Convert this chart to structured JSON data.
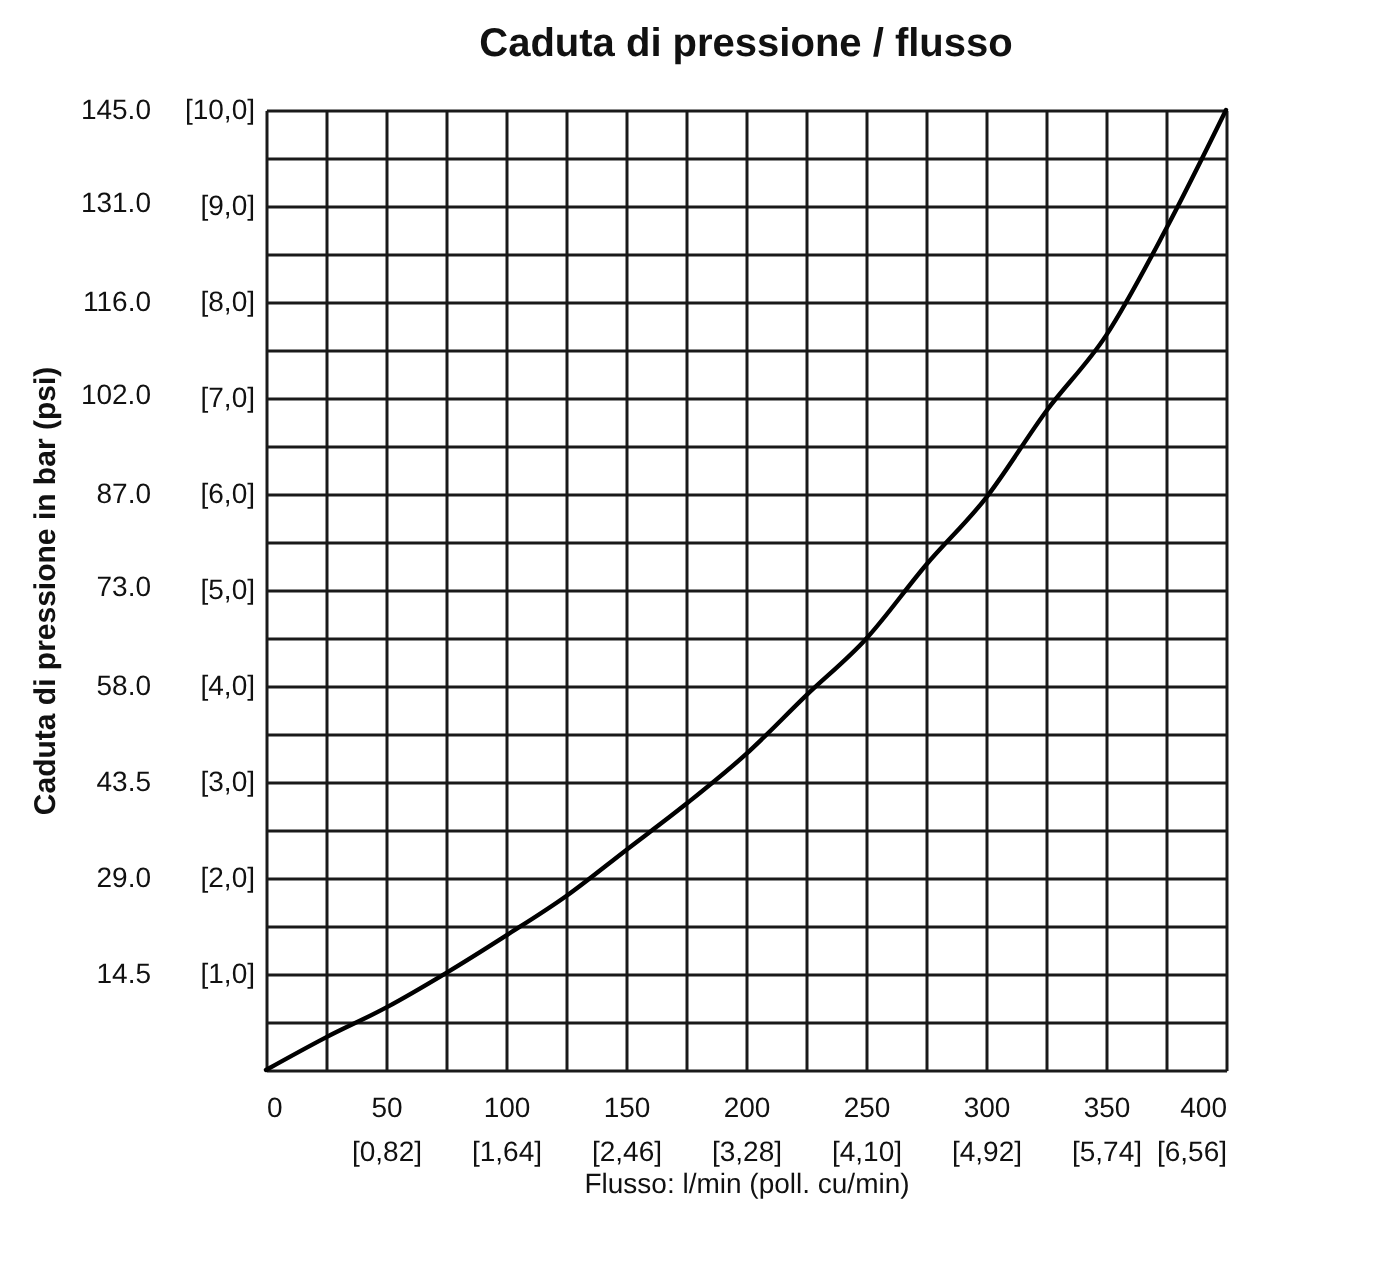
{
  "chart_data": {
    "type": "line",
    "title": "Caduta di pressione / flusso",
    "xlabel": "Flusso: l/min (poll. cu/min)",
    "y2label": "Caduta di pressione in bar (psi)",
    "x": [
      0,
      25,
      50,
      75,
      100,
      125,
      150,
      175,
      200,
      225,
      250,
      275,
      300,
      325,
      350,
      375,
      400
    ],
    "series": [
      {
        "color": "#000000",
        "values": [
          0,
          0.34,
          0.65,
          1.01,
          1.4,
          1.81,
          2.29,
          2.77,
          3.29,
          3.9,
          4.49,
          5.26,
          5.96,
          6.86,
          7.65,
          8.76,
          10
        ]
      }
    ],
    "xlim": [
      0,
      400
    ],
    "ylim": [
      0,
      10
    ],
    "xticks": [
      0,
      {
        "value": 25,
        "label": null
      },
      50,
      {
        "value": 75,
        "label": null
      },
      100,
      {
        "value": 125,
        "label": null
      },
      150,
      {
        "value": 175,
        "label": null
      },
      200,
      {
        "value": 225,
        "label": null
      },
      250,
      {
        "value": 275,
        "label": null
      },
      300,
      {
        "value": 325,
        "label": null
      },
      350,
      {
        "value": 375,
        "label": null
      },
      400
    ],
    "x2lim": [
      0,
      6.56
    ],
    "x2ticks": [
      {
        "value": 0.82,
        "label": "[0,82]"
      },
      {
        "value": 1.64,
        "label": "[1,64]"
      },
      {
        "value": 2.46,
        "label": "[2,46]"
      },
      {
        "value": 3.28,
        "label": "[3,28]"
      },
      {
        "value": 4.1,
        "label": "[4,10]"
      },
      {
        "value": 4.92,
        "label": "[4,92]"
      },
      {
        "value": 5.74,
        "label": "[5,74]"
      },
      {
        "value": 6.56,
        "label": "[6,56]"
      }
    ],
    "yticks": [
      {
        "value": 0,
        "label": null
      },
      {
        "value": 0.5,
        "label": null
      },
      {
        "value": 1,
        "label": "[1,0]"
      },
      {
        "value": 1.5,
        "label": null
      },
      {
        "value": 2,
        "label": "[2,0]"
      },
      {
        "value": 2.5,
        "label": null
      },
      {
        "value": 3,
        "label": "[3,0]"
      },
      {
        "value": 3.5,
        "label": null
      },
      {
        "value": 4,
        "label": "[4,0]"
      },
      {
        "value": 4.5,
        "label": null
      },
      {
        "value": 5,
        "label": "[5,0]"
      },
      {
        "value": 5.5,
        "label": null
      },
      {
        "value": 6,
        "label": "[6,0]"
      },
      {
        "value": 6.5,
        "label": null
      },
      {
        "value": 7,
        "label": "[7,0]"
      },
      {
        "value": 7.5,
        "label": null
      },
      {
        "value": 8,
        "label": "[8,0]"
      },
      {
        "value": 8.5,
        "label": null
      },
      {
        "value": 9,
        "label": "[9,0]"
      },
      {
        "value": 9.5,
        "label": null
      },
      {
        "value": 10,
        "label": "[10,0]"
      }
    ],
    "y2lim": [
      0,
      145
    ],
    "y2ticks": [
      14.5,
      {
        "value": 29,
        "label": "29.0"
      },
      43.5,
      {
        "value": 58,
        "label": "58.0"
      },
      {
        "value": 73,
        "label": "73.0"
      },
      {
        "value": 87,
        "label": "87.0"
      },
      {
        "value": 102,
        "label": "102.0"
      },
      {
        "value": 116,
        "label": "116.0"
      },
      {
        "value": 131,
        "label": "131.0"
      },
      {
        "value": 145,
        "label": "145.0"
      }
    ],
    "grid": true,
    "marker": "none",
    "line_style": "solid"
  }
}
